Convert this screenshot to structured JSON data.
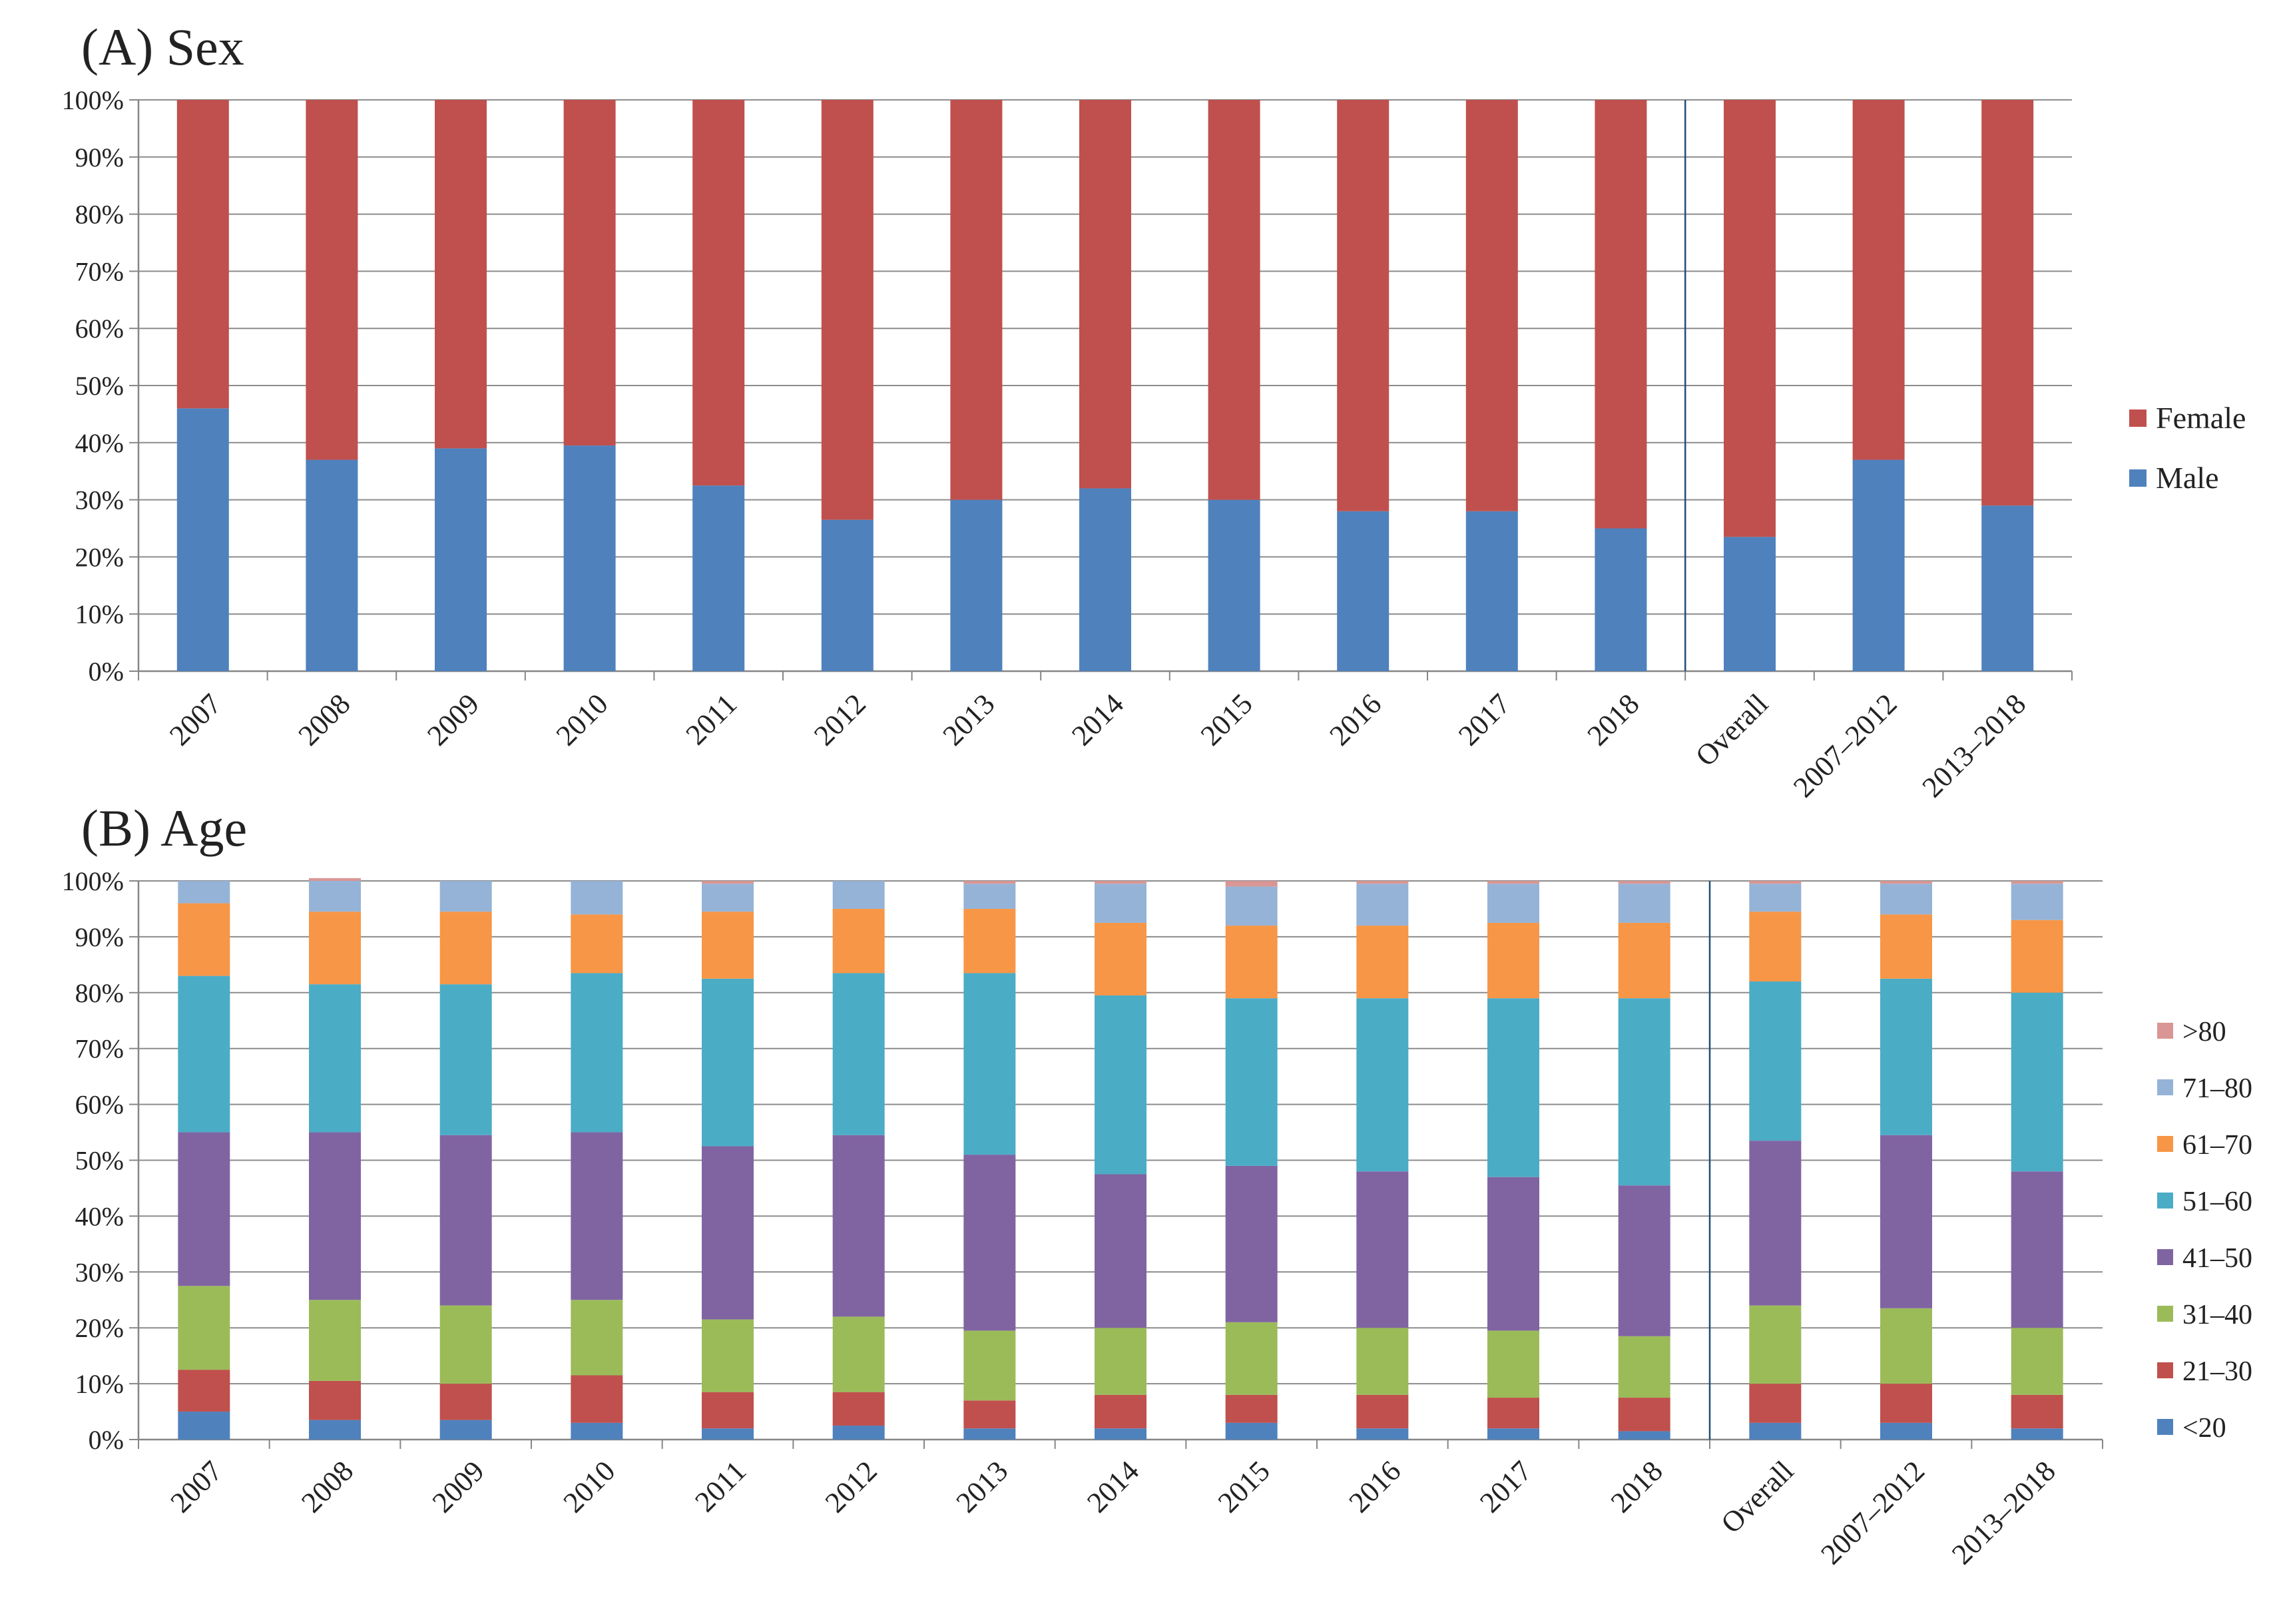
{
  "chart_data": [
    {
      "type": "bar",
      "stacked": true,
      "percent": true,
      "title": "(A) Sex",
      "xlabel": "",
      "ylabel": "",
      "ylim": [
        0,
        100
      ],
      "y_ticks": [
        "0%",
        "10%",
        "20%",
        "30%",
        "40%",
        "50%",
        "60%",
        "70%",
        "80%",
        "90%",
        "100%"
      ],
      "categories": [
        "2007",
        "2008",
        "2009",
        "2010",
        "2011",
        "2012",
        "2013",
        "2014",
        "2015",
        "2016",
        "2017",
        "2018",
        "Overall",
        "2007–2012",
        "2013–2018"
      ],
      "separator_after_index": 11,
      "legend_position": "right",
      "series": [
        {
          "name": "Male",
          "color": "#4F81BD",
          "values": [
            46,
            37,
            39,
            39.5,
            32.5,
            26.5,
            30,
            32,
            30,
            28,
            28,
            25,
            23.5,
            37,
            29
          ]
        },
        {
          "name": "Female",
          "color": "#C0504D",
          "values": [
            54,
            63,
            61,
            60.5,
            67.5,
            73.5,
            70,
            68,
            70,
            72,
            72,
            75,
            76.5,
            63,
            71
          ]
        }
      ]
    },
    {
      "type": "bar",
      "stacked": true,
      "percent": true,
      "title": "(B) Age",
      "xlabel": "",
      "ylabel": "",
      "ylim": [
        0,
        100
      ],
      "y_ticks": [
        "0%",
        "10%",
        "20%",
        "30%",
        "40%",
        "50%",
        "60%",
        "70%",
        "80%",
        "90%",
        "100%"
      ],
      "categories": [
        "2007",
        "2008",
        "2009",
        "2010",
        "2011",
        "2012",
        "2013",
        "2014",
        "2015",
        "2016",
        "2017",
        "2018",
        "Overall",
        "2007–2012",
        "2013–2018"
      ],
      "separator_after_index": 11,
      "legend_position": "right",
      "series": [
        {
          "name": "<20",
          "color": "#4F81BD",
          "values": [
            5,
            3.5,
            3.5,
            3,
            2,
            2.5,
            2,
            2,
            3,
            2,
            2,
            1.5,
            3,
            3,
            2
          ]
        },
        {
          "name": "21–30",
          "color": "#C0504D",
          "values": [
            7.5,
            7,
            6.5,
            8.5,
            6.5,
            6,
            5,
            6,
            5,
            6,
            5.5,
            6,
            7,
            7,
            6
          ]
        },
        {
          "name": "31–40",
          "color": "#9BBB59",
          "values": [
            15,
            14.5,
            14,
            13.5,
            13,
            13.5,
            12.5,
            12,
            13,
            12,
            12,
            11,
            14,
            13.5,
            12
          ]
        },
        {
          "name": "41–50",
          "color": "#8064A2",
          "values": [
            27.5,
            30,
            30.5,
            30,
            31,
            32.5,
            31.5,
            27.5,
            28,
            28,
            27.5,
            27,
            29.5,
            31,
            28
          ]
        },
        {
          "name": "51–60",
          "color": "#4BACC6",
          "values": [
            28,
            26.5,
            27,
            28.5,
            30,
            29,
            32.5,
            32,
            30,
            31,
            32,
            33.5,
            28.5,
            28,
            32
          ]
        },
        {
          "name": "61–70",
          "color": "#F79646",
          "values": [
            13,
            13,
            13,
            10.5,
            12,
            11.5,
            11.5,
            13,
            13,
            13,
            13.5,
            13.5,
            12.5,
            11.5,
            13
          ]
        },
        {
          "name": "71–80",
          "color": "#95B3D7",
          "values": [
            4,
            5.5,
            5.5,
            6,
            5,
            5,
            4.5,
            7,
            7,
            7.5,
            7,
            7,
            5,
            5.5,
            6.5
          ]
        },
        {
          "name": ">80",
          "color": "#D99694",
          "values": [
            0,
            0.5,
            0,
            0,
            0.5,
            0,
            0.5,
            0.5,
            1,
            0.5,
            0.5,
            0.5,
            0.5,
            0.5,
            0.5
          ]
        }
      ]
    }
  ]
}
